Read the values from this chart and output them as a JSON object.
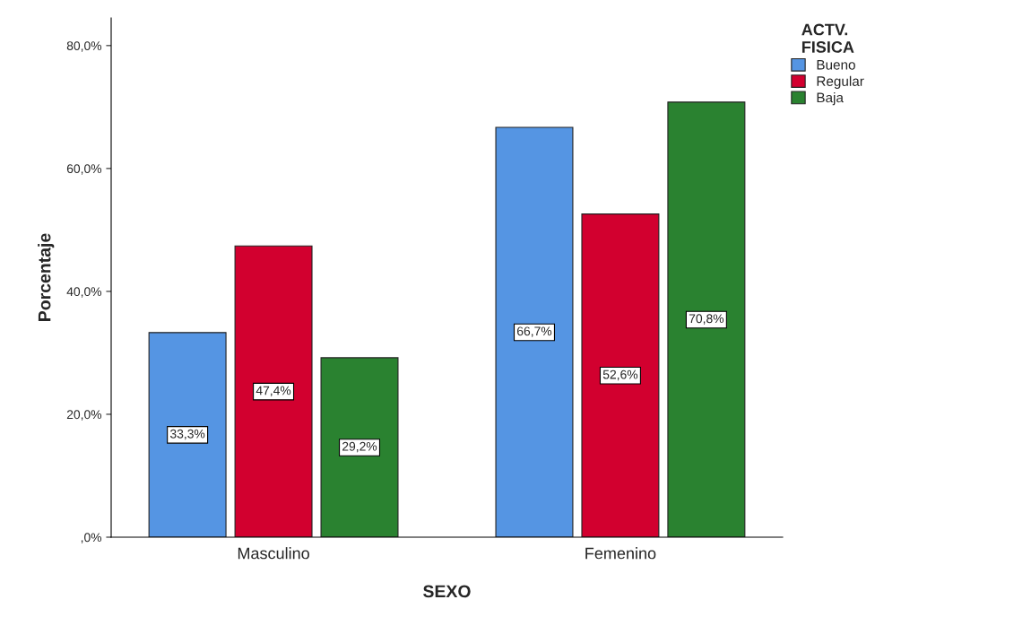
{
  "chart_data": {
    "type": "bar",
    "xlabel": "SEXO",
    "ylabel": "Porcentaje",
    "legend_title": "ACTV.\nFISICA",
    "categories": [
      "Masculino",
      "Femenino"
    ],
    "series": [
      {
        "name": "Bueno",
        "color": "#5595e3",
        "values": [
          33.3,
          66.7
        ],
        "value_labels": [
          "33,3%",
          "66,7%"
        ]
      },
      {
        "name": "Regular",
        "color": "#d2002f",
        "values": [
          47.4,
          52.6
        ],
        "value_labels": [
          "47,4%",
          "52,6%"
        ]
      },
      {
        "name": "Baja",
        "color": "#2a8230",
        "values": [
          29.2,
          70.8
        ],
        "value_labels": [
          "29,2%",
          "70,8%"
        ]
      }
    ],
    "ylim": [
      0,
      84.5
    ],
    "yticks": [
      {
        "value": 0,
        "label": ",0%"
      },
      {
        "value": 20,
        "label": "20,0%"
      },
      {
        "value": 40,
        "label": "40,0%"
      },
      {
        "value": 60,
        "label": "60,0%"
      },
      {
        "value": 80,
        "label": "80,0%"
      }
    ],
    "grid": false,
    "legend": "top right"
  }
}
